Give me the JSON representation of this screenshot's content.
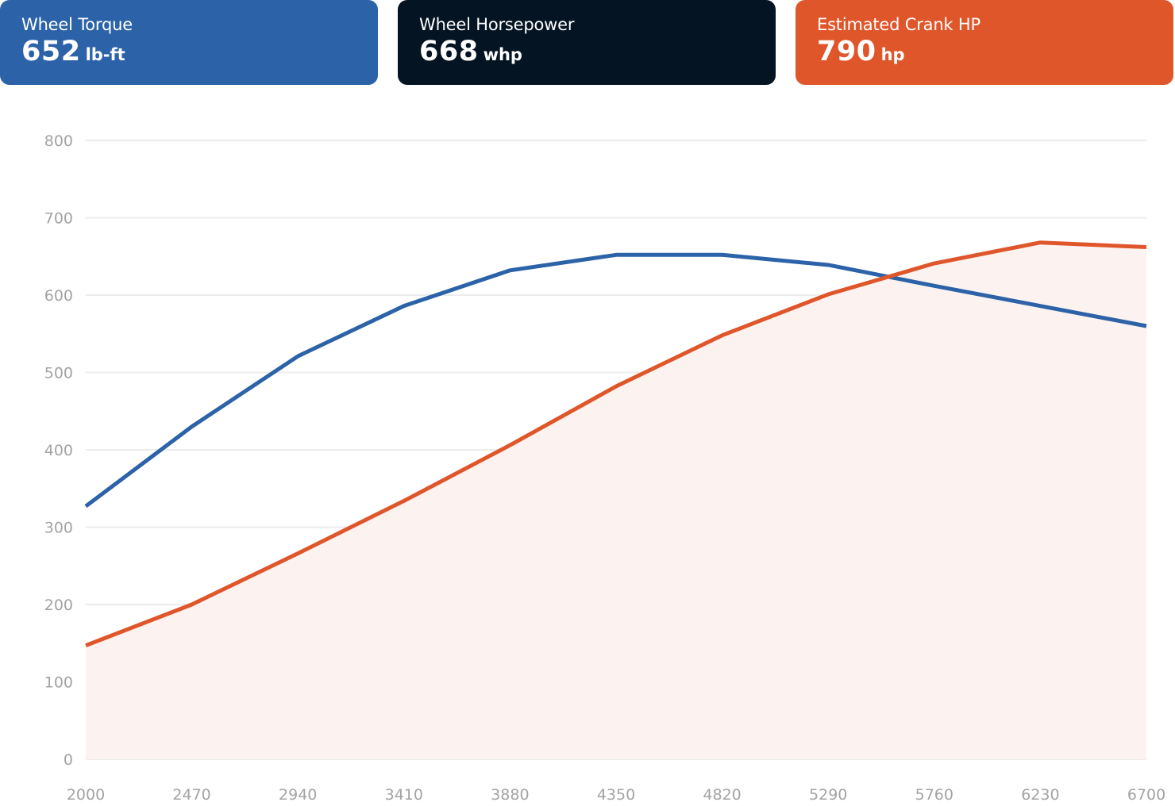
{
  "cards": [
    {
      "label": "Wheel Torque",
      "value": "652",
      "unit": "lb-ft",
      "color": "#2c63a8"
    },
    {
      "label": "Wheel Horsepower",
      "value": "668",
      "unit": "whp",
      "color": "#041422"
    },
    {
      "label": "Estimated Crank HP",
      "value": "790",
      "unit": "hp",
      "color": "#e0562b"
    }
  ],
  "chart_data": {
    "type": "line",
    "x": [
      2000,
      2470,
      2940,
      3410,
      3880,
      4350,
      4820,
      5290,
      5760,
      6230,
      6700
    ],
    "xlim": [
      2000,
      6700
    ],
    "ylim": [
      0,
      800
    ],
    "yticks": [
      0,
      100,
      200,
      300,
      400,
      500,
      600,
      700,
      800
    ],
    "grid": true,
    "series": [
      {
        "values": [
          327,
          430,
          521,
          586,
          632,
          652,
          652,
          639,
          612,
          586,
          560
        ],
        "color": "#2c63a8",
        "area": false
      },
      {
        "values": [
          147,
          200,
          266,
          334,
          406,
          482,
          548,
          601,
          641,
          668,
          662
        ],
        "color": "#e0562b",
        "area": true,
        "area_color": "#fcf3f0"
      }
    ]
  }
}
